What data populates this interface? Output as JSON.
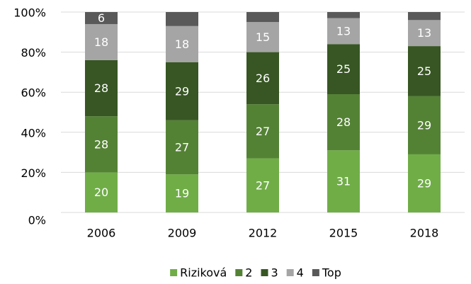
{
  "chart_data": {
    "type": "stacked_bar",
    "categories": [
      "2006",
      "2009",
      "2012",
      "2015",
      "2018"
    ],
    "series": [
      {
        "name": "Riziková",
        "color": "#70ad47",
        "values": [
          20,
          19,
          27,
          31,
          29
        ]
      },
      {
        "name": "2",
        "color": "#548235",
        "values": [
          28,
          27,
          27,
          28,
          29
        ]
      },
      {
        "name": "3",
        "color": "#375623",
        "values": [
          28,
          29,
          26,
          25,
          25
        ]
      },
      {
        "name": "4",
        "color": "#a5a5a5",
        "values": [
          18,
          18,
          15,
          13,
          13
        ]
      },
      {
        "name": "Top",
        "color": "#595959",
        "values": [
          6,
          7,
          5,
          3,
          4
        ],
        "value_labels": [
          "6",
          null,
          null,
          null,
          null
        ]
      }
    ],
    "ylim": [
      0,
      100
    ],
    "yticks": [
      {
        "value": 0,
        "label": "0%"
      },
      {
        "value": 20,
        "label": "20%"
      },
      {
        "value": 40,
        "label": "40%"
      },
      {
        "value": 60,
        "label": "60%"
      },
      {
        "value": 80,
        "label": "80%"
      },
      {
        "value": 100,
        "label": "100%"
      }
    ],
    "grid": true,
    "legend": "bottom"
  }
}
